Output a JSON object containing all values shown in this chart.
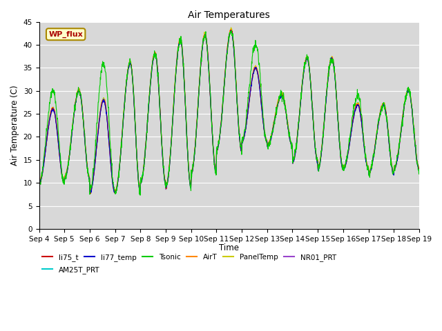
{
  "title": "Air Temperatures",
  "ylabel": "Air Temperature (C)",
  "xlabel": "Time",
  "ylim": [
    0,
    45
  ],
  "yticks": [
    0,
    5,
    10,
    15,
    20,
    25,
    30,
    35,
    40,
    45
  ],
  "plot_bg_color": "#d8d8d8",
  "legend_labels": [
    "li75_t",
    "li77_temp",
    "Tsonic",
    "AirT",
    "PanelTemp",
    "NR01_PRT",
    "AM25T_PRT"
  ],
  "legend_colors": [
    "#cc0000",
    "#0000cc",
    "#00cc00",
    "#ff8800",
    "#cccc00",
    "#9944cc",
    "#00cccc"
  ],
  "annotation_text": "WP_flux",
  "annotation_bg": "#ffffcc",
  "annotation_border": "#aa8800",
  "annotation_text_color": "#aa0000",
  "n_days": 15,
  "start_day": 4,
  "tick_label_size": 7.5,
  "peaks": [
    26,
    30,
    28,
    36,
    38,
    41,
    42,
    43,
    35,
    29,
    37,
    37,
    27,
    27,
    30
  ],
  "valleys": [
    10,
    11,
    8,
    8,
    10,
    9,
    12,
    17,
    19,
    18,
    14.5,
    13,
    13,
    12,
    13
  ],
  "tsonic_extra": [
    4,
    0,
    8,
    0,
    0,
    0,
    0,
    0,
    5,
    0,
    0,
    0,
    2,
    0,
    0
  ],
  "peak_times": [
    0.55,
    0.58,
    0.55,
    0.6,
    0.58,
    0.58,
    0.55,
    0.58,
    0.55,
    0.58,
    0.58,
    0.56,
    0.58,
    0.6,
    0.58
  ]
}
